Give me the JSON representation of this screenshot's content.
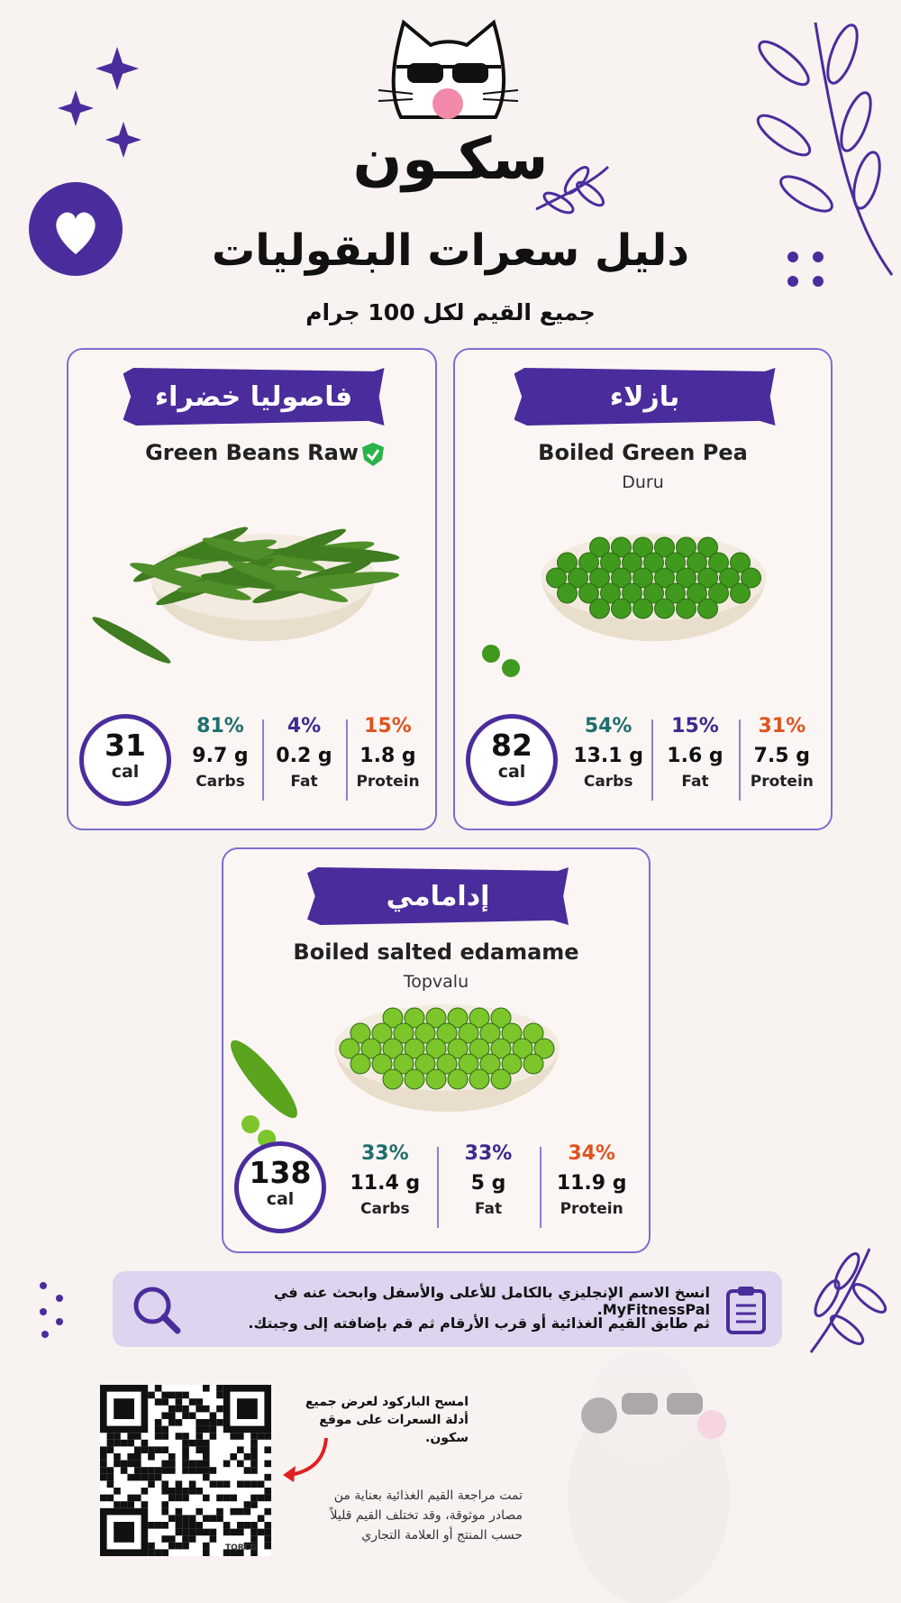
{
  "header": {
    "brand": "سكـون",
    "title": "دليل سعرات البقوليات",
    "subtitle": "جميع القيم لكل 100 جرام"
  },
  "cards": [
    {
      "label": "فاصوليا خضراء",
      "name": "Green Beans Raw",
      "calories": "31",
      "unit": "cal",
      "macros": [
        {
          "percent": "81%",
          "grams": "9.7 g",
          "label": "Carbs"
        },
        {
          "percent": "4%",
          "grams": "0.2 g",
          "label": "Fat"
        },
        {
          "percent": "15%",
          "grams": "1.8 g",
          "label": "Protein"
        }
      ]
    },
    {
      "label": "بازلاء",
      "name": "Boiled Green Pea",
      "brand": "Duru",
      "calories": "82",
      "unit": "cal",
      "macros": [
        {
          "percent": "54%",
          "grams": "13.1 g",
          "label": "Carbs"
        },
        {
          "percent": "15%",
          "grams": "1.6 g",
          "label": "Fat"
        },
        {
          "percent": "31%",
          "grams": "7.5 g",
          "label": "Protein"
        }
      ]
    },
    {
      "label": "إدامامي",
      "name": "Boiled salted edamame",
      "brand": "Topvalu",
      "calories": "138",
      "unit": "cal",
      "macros": [
        {
          "percent": "33%",
          "grams": "11.4 g",
          "label": "Carbs"
        },
        {
          "percent": "33%",
          "grams": "5 g",
          "label": "Fat"
        },
        {
          "percent": "34%",
          "grams": "11.9 g",
          "label": "Protein"
        }
      ]
    }
  ],
  "instructions": {
    "line1": "انسخ الاسم الإنجليزي بالكامل للأعلى والأسفل وابحث عنه في MyFitnessPal.",
    "line2": "ثم طابق القيم الغذائية أو قرب الأرقام ثم قم بإضافته إلى وجبتك."
  },
  "qr": {
    "caption": "امسح الباركود لعرض جميع أدلة السعرات على موقع سكون.",
    "tag": "TQRCG"
  },
  "note": "تمت مراجعة القيم الغذائية بعناية من مصادر موثوقة، وقد تختلف القيم قليلاً حسب المنتج أو العلامة التجاري"
}
